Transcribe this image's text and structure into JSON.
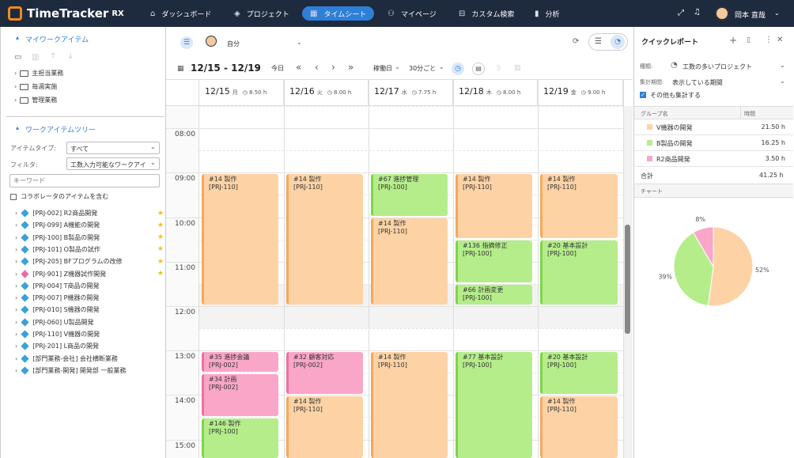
{
  "app": {
    "name": "TimeTracker",
    "badge": "RX"
  },
  "nav": [
    {
      "label": "ダッシュボード",
      "icon": "home-icon",
      "glyph": "⌂"
    },
    {
      "label": "プロジェクト",
      "icon": "cube-icon",
      "glyph": "◈"
    },
    {
      "label": "タイムシート",
      "icon": "calendar-icon",
      "glyph": "▦"
    },
    {
      "label": "マイページ",
      "icon": "user-icon",
      "glyph": "⚇"
    },
    {
      "label": "カスタム検索",
      "icon": "search-list-icon",
      "glyph": "⊟"
    },
    {
      "label": "分析",
      "icon": "bar-chart-icon",
      "glyph": "▮"
    }
  ],
  "user": {
    "name": "岡本 直哉"
  },
  "left": {
    "my_items_title": "マイワークアイテム",
    "my_items": [
      "主担当業務",
      "毎週実施",
      "管理業務"
    ],
    "tree_title": "ワークアイテムツリー",
    "item_type_label": "アイテムタイプ:",
    "item_type_value": "すべて",
    "filter_label": "フィルタ:",
    "filter_value": "工数入力可能なワークアイ",
    "keyword_placeholder": "キーワード",
    "collab_label": "コラボレータのアイテムを含む",
    "tree_items": [
      {
        "label": "[PRJ-002] R2商品開発",
        "star": true,
        "pink": false
      },
      {
        "label": "[PRJ-099] A機能の開発",
        "star": true,
        "pink": false
      },
      {
        "label": "[PRJ-100] B製品の開発",
        "star": true,
        "pink": false
      },
      {
        "label": "[PRJ-101] O製品の試作",
        "star": true,
        "pink": false
      },
      {
        "label": "[PRJ-205] BFプログラムの改修",
        "star": true,
        "pink": false
      },
      {
        "label": "[PRJ-901] Z機器試作開発",
        "star": true,
        "pink": true
      },
      {
        "label": "[PRJ-004] T商品の開発",
        "star": false,
        "pink": false
      },
      {
        "label": "[PRJ-007] P機器の開発",
        "star": false,
        "pink": false
      },
      {
        "label": "[PRJ-010] S機器の開発",
        "star": false,
        "pink": false
      },
      {
        "label": "[PRJ-060] U製品開発",
        "star": false,
        "pink": false
      },
      {
        "label": "[PRJ-110] V機器の開発",
        "star": false,
        "pink": false
      },
      {
        "label": "[PRJ-201] L商品の開発",
        "star": false,
        "pink": false
      },
      {
        "label": "[部門業務-会社] 会社横断業務",
        "star": false,
        "pink": false
      },
      {
        "label": "[部門業務-開発] 開発部 一般業務",
        "star": false,
        "pink": false
      }
    ]
  },
  "calendar": {
    "user_label": "自分",
    "range": "12/15 - 12/19",
    "today": "今日",
    "workday": "稼働日",
    "interval": "30分ごと",
    "days": [
      {
        "date": "12/15",
        "dow": "月",
        "hours": "8.50 h"
      },
      {
        "date": "12/16",
        "dow": "火",
        "hours": "8.00 h"
      },
      {
        "date": "12/17",
        "dow": "水",
        "hours": "7.75 h"
      },
      {
        "date": "12/18",
        "dow": "木",
        "hours": "8.00 h"
      },
      {
        "date": "12/19",
        "dow": "金",
        "hours": "9.00 h"
      }
    ],
    "times": [
      "08:00",
      "09:00",
      "10:00",
      "11:00",
      "12:00",
      "13:00",
      "14:00",
      "15:00"
    ],
    "events": [
      {
        "day": 0,
        "start": 9.0,
        "end": 12.0,
        "t1": "#14 製作",
        "t2": "[PRJ-110]",
        "c": "o"
      },
      {
        "day": 0,
        "start": 13.0,
        "end": 13.5,
        "t1": "#35 進捗会議",
        "t2": "[PRJ-002]",
        "c": "p"
      },
      {
        "day": 0,
        "start": 13.5,
        "end": 14.5,
        "t1": "#34 計画",
        "t2": "[PRJ-002]",
        "c": "p"
      },
      {
        "day": 0,
        "start": 14.5,
        "end": 16.0,
        "t1": "#146 製作",
        "t2": "[PRJ-100]",
        "c": "g"
      },
      {
        "day": 1,
        "start": 9.0,
        "end": 12.0,
        "t1": "#14 製作",
        "t2": "[PRJ-110]",
        "c": "o"
      },
      {
        "day": 1,
        "start": 13.0,
        "end": 14.0,
        "t1": "#32 顧客対応",
        "t2": "[PRJ-002]",
        "c": "p"
      },
      {
        "day": 1,
        "start": 14.0,
        "end": 16.0,
        "t1": "#14 製作",
        "t2": "[PRJ-110]",
        "c": "o"
      },
      {
        "day": 2,
        "start": 9.0,
        "end": 10.0,
        "t1": "#67 進捗管理",
        "t2": "[PRJ-100]",
        "c": "g"
      },
      {
        "day": 2,
        "start": 10.0,
        "end": 12.0,
        "t1": "#14 製作",
        "t2": "[PRJ-110]",
        "c": "o"
      },
      {
        "day": 2,
        "start": 13.0,
        "end": 16.0,
        "t1": "#14 製作",
        "t2": "[PRJ-110]",
        "c": "o"
      },
      {
        "day": 3,
        "start": 9.0,
        "end": 10.5,
        "t1": "#14 製作",
        "t2": "[PRJ-110]",
        "c": "o"
      },
      {
        "day": 3,
        "start": 10.5,
        "end": 11.5,
        "t1": "#136 指摘修正",
        "t2": "[PRJ-100]",
        "c": "g"
      },
      {
        "day": 3,
        "start": 11.5,
        "end": 12.0,
        "t1": "#66 計画変更",
        "t2": "[PRJ-100]",
        "c": "g"
      },
      {
        "day": 3,
        "start": 13.0,
        "end": 16.0,
        "t1": "#77 基本設計",
        "t2": "[PRJ-100]",
        "c": "g"
      },
      {
        "day": 4,
        "start": 9.0,
        "end": 10.5,
        "t1": "#14 製作",
        "t2": "[PRJ-110]",
        "c": "o"
      },
      {
        "day": 4,
        "start": 10.5,
        "end": 12.0,
        "t1": "#20 基本設計",
        "t2": "[PRJ-100]",
        "c": "g"
      },
      {
        "day": 4,
        "start": 13.0,
        "end": 14.0,
        "t1": "#20 基本設計",
        "t2": "[PRJ-100]",
        "c": "g"
      },
      {
        "day": 4,
        "start": 14.0,
        "end": 16.0,
        "t1": "#14 製作",
        "t2": "[PRJ-110]",
        "c": "o"
      }
    ]
  },
  "report": {
    "title": "クイックレポート",
    "type_label": "種類:",
    "type_value": "工数の多いプロジェクト",
    "period_label": "集計期間:",
    "period_value": "表示している期間",
    "others_label": "その他も集計する",
    "col_group": "グループ名",
    "col_time": "時間",
    "rows": [
      {
        "name": "V機器の開発",
        "hours": "21.50 h",
        "color": "#fdd3a5"
      },
      {
        "name": "B製品の開発",
        "hours": "16.25 h",
        "color": "#b5ed8a"
      },
      {
        "name": "R2商品開発",
        "hours": "3.50 h",
        "color": "#f9a6c8"
      }
    ],
    "total_label": "合計",
    "total_value": "41.25 h",
    "chart_label": "チャート"
  },
  "chart_data": {
    "type": "pie",
    "categories": [
      "V機器の開発",
      "B製品の開発",
      "R2商品開発"
    ],
    "values": [
      21.5,
      16.25,
      3.5
    ],
    "labels": [
      "52%",
      "39%",
      "8%"
    ],
    "colors": [
      "#fdd3a5",
      "#b5ed8a",
      "#f9a6c8"
    ]
  }
}
